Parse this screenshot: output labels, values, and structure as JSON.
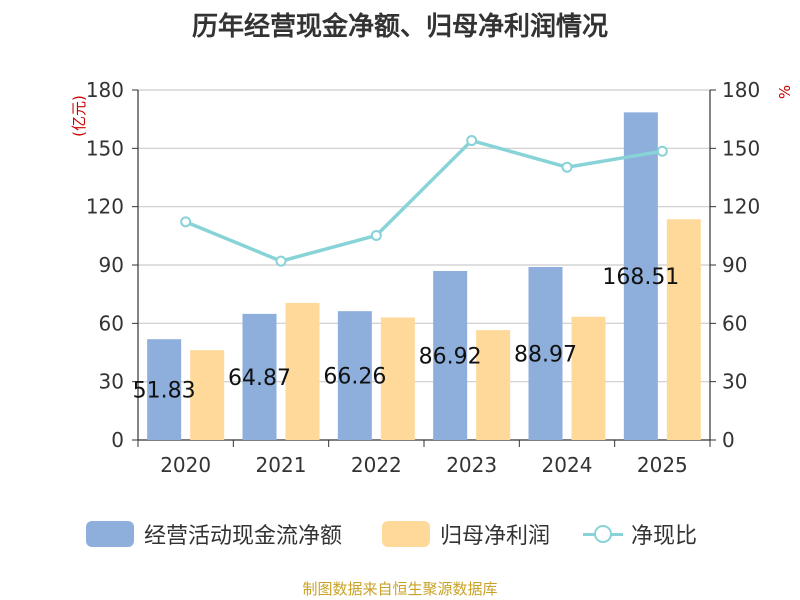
{
  "title": "历年经营现金净额、归母净利润情况",
  "source": "制图数据来自恒生聚源数据库",
  "chart_data": {
    "type": "bar",
    "title": "历年经营现金净额、归母净利润情况",
    "categories": [
      "2020",
      "2021",
      "2022",
      "2023",
      "2024",
      "2025"
    ],
    "ylabel_left": "(亿元)",
    "ylabel_right": "%",
    "ylim_left": [
      0,
      180
    ],
    "ylim_right": [
      0,
      180
    ],
    "yticks": [
      0,
      30,
      60,
      90,
      120,
      150,
      180
    ],
    "grid": true,
    "legend_position": "bottom",
    "series": [
      {
        "name": "经营活动现金流净额",
        "type": "bar",
        "axis": "left",
        "color": "#8eaedc",
        "values": [
          51.83,
          64.87,
          66.26,
          86.92,
          88.97,
          168.51
        ],
        "labels": [
          "51.83",
          "64.87",
          "66.26",
          "86.92",
          "88.97",
          "168.51"
        ]
      },
      {
        "name": "归母净利润",
        "type": "bar",
        "axis": "left",
        "color": "#ffd999",
        "values": [
          46.2,
          70.5,
          63.0,
          56.5,
          63.4,
          113.5
        ]
      },
      {
        "name": "净现比",
        "type": "line",
        "axis": "right",
        "color": "#88d3d8",
        "values": [
          112.2,
          92.0,
          105.2,
          154.0,
          140.3,
          148.5
        ]
      }
    ]
  }
}
